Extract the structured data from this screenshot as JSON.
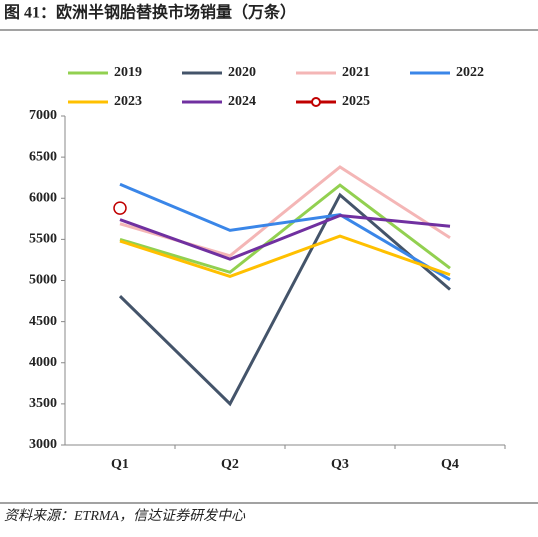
{
  "chart_data": {
    "type": "line",
    "title": "图 41：欧洲半钢胎替换市场销量（万条）",
    "source": "资料来源：ETRMA，信达证券研发中心",
    "categories": [
      "Q1",
      "Q2",
      "Q3",
      "Q4"
    ],
    "series": [
      {
        "name": "2019",
        "color": "#92d050",
        "values": [
          5500,
          5100,
          6160,
          5150
        ]
      },
      {
        "name": "2020",
        "color": "#44546a",
        "values": [
          4810,
          3500,
          6040,
          4890
        ]
      },
      {
        "name": "2021",
        "color": "#f4b6b6",
        "values": [
          5690,
          5300,
          6380,
          5520
        ]
      },
      {
        "name": "2022",
        "color": "#3a86e8",
        "values": [
          6170,
          5610,
          5800,
          5010
        ]
      },
      {
        "name": "2023",
        "color": "#ffc000",
        "values": [
          5480,
          5050,
          5540,
          5070
        ]
      },
      {
        "name": "2024",
        "color": "#7030a0",
        "values": [
          5740,
          5260,
          5790,
          5660
        ]
      },
      {
        "name": "2025",
        "color": "#c00000",
        "values": [
          5880,
          null,
          null,
          null
        ],
        "marker": "circle"
      }
    ],
    "ylim": [
      3000,
      7000
    ],
    "yticks": [
      3000,
      3500,
      4000,
      4500,
      5000,
      5500,
      6000,
      6500,
      7000
    ]
  }
}
